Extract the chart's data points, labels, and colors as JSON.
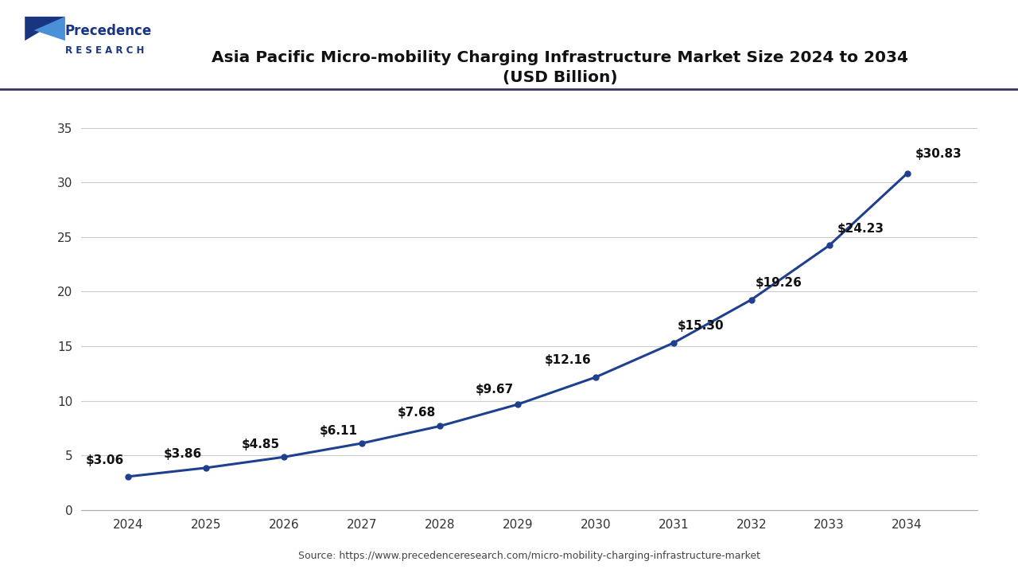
{
  "title_line1": "Asia Pacific Micro-mobility Charging Infrastructure Market Size 2024 to 2034",
  "title_line2": "(USD Billion)",
  "years": [
    2024,
    2025,
    2026,
    2027,
    2028,
    2029,
    2030,
    2031,
    2032,
    2033,
    2034
  ],
  "values": [
    3.06,
    3.86,
    4.85,
    6.11,
    7.68,
    9.67,
    12.16,
    15.3,
    19.26,
    24.23,
    30.83
  ],
  "labels": [
    "$3.06",
    "$3.86",
    "$4.85",
    "$6.11",
    "$7.68",
    "$9.67",
    "$12.16",
    "$15.30",
    "$19.26",
    "$24.23",
    "$30.83"
  ],
  "label_offsets_x": [
    -0.05,
    -0.05,
    -0.05,
    -0.05,
    -0.05,
    -0.05,
    -0.05,
    0.05,
    0.05,
    0.1,
    0.1
  ],
  "label_offsets_y": [
    0.9,
    0.7,
    0.6,
    0.6,
    0.7,
    0.8,
    1.0,
    1.0,
    1.0,
    1.0,
    1.2
  ],
  "label_ha": [
    "right",
    "right",
    "right",
    "right",
    "right",
    "right",
    "right",
    "left",
    "left",
    "left",
    "left"
  ],
  "line_color": "#1f3f8f",
  "marker_color": "#1f3f8f",
  "bg_color": "#ffffff",
  "plot_bg_color": "#ffffff",
  "grid_color": "#cccccc",
  "ylim": [
    0,
    37
  ],
  "yticks": [
    0,
    5,
    10,
    15,
    20,
    25,
    30,
    35
  ],
  "source_text": "Source: https://www.precedenceresearch.com/micro-mobility-charging-infrastructure-market",
  "title_fontsize": 14.5,
  "label_fontsize": 11,
  "tick_fontsize": 11,
  "source_fontsize": 9,
  "line_width": 2.2,
  "marker_size": 5
}
